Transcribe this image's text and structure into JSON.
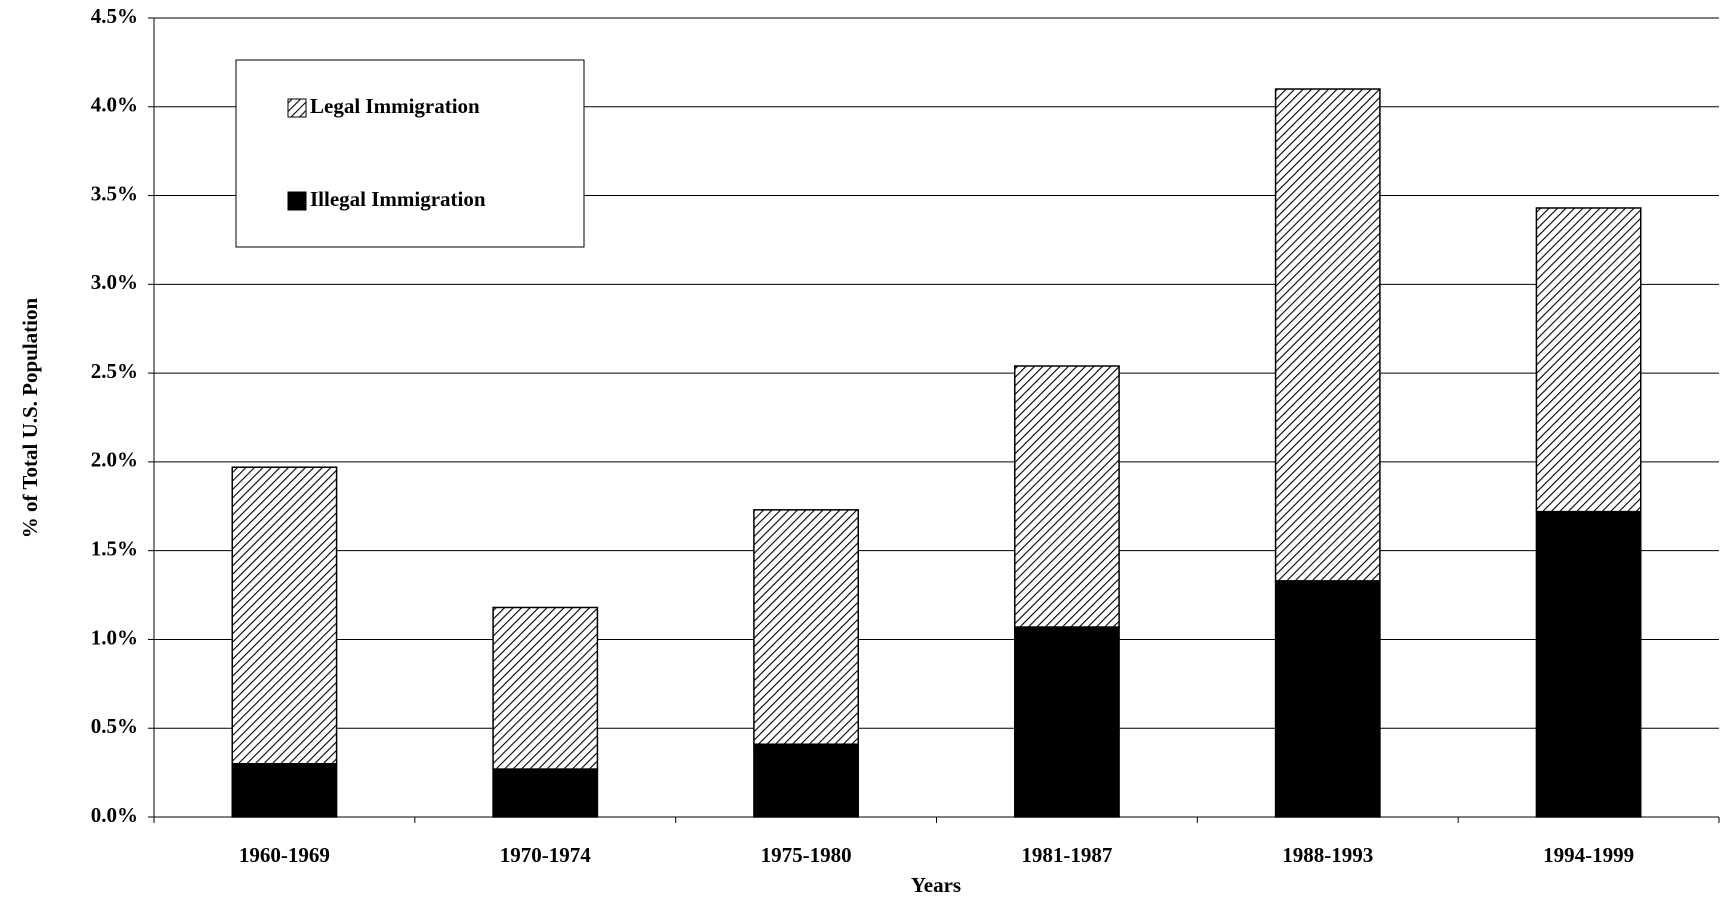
{
  "chart_data": {
    "type": "stacked-bar",
    "x_label": "Years",
    "y_label": "% of Total U.S. Population",
    "categories": [
      "1960-1969",
      "1970-1974",
      "1975-1980",
      "1981-1987",
      "1988-1993",
      "1994-1999"
    ],
    "series": [
      {
        "name": "Illegal Immigration",
        "color": "#000000",
        "values": [
          0.3,
          0.27,
          0.41,
          1.07,
          1.33,
          1.72
        ]
      },
      {
        "name": "Legal Immigration",
        "color": "#000000",
        "pattern": "diagonal-hatch",
        "values": [
          1.67,
          0.91,
          1.32,
          1.47,
          2.77,
          1.71
        ]
      }
    ],
    "ylim": [
      0,
      4.5
    ],
    "yticks": [
      {
        "value": 0,
        "label": "0.0%"
      },
      {
        "value": 0.5,
        "label": "0.5%"
      },
      {
        "value": 1,
        "label": "1.0%"
      },
      {
        "value": 1.5,
        "label": "1.5%"
      },
      {
        "value": 2,
        "label": "2.0%"
      },
      {
        "value": 2.5,
        "label": "2.5%"
      },
      {
        "value": 3,
        "label": "3.0%"
      },
      {
        "value": 3.5,
        "label": "3.5%"
      },
      {
        "value": 4,
        "label": "4.0%"
      },
      {
        "value": 4.5,
        "label": "4.5%"
      }
    ],
    "grid": true,
    "legend": "top-left"
  }
}
